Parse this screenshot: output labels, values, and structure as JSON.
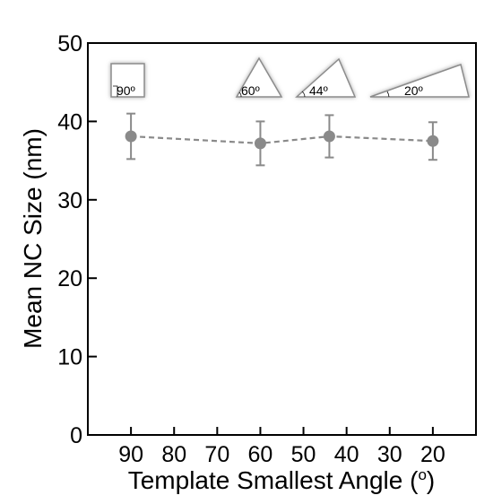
{
  "chart_data": {
    "type": "line",
    "xlabel_text": "Template Smallest Angle (",
    "xlabel_sup": "o",
    "xlabel_close": ")",
    "ylabel": "Mean NC Size (nm)",
    "xlim": [
      100,
      10
    ],
    "ylim": [
      0,
      50
    ],
    "x_reversed": true,
    "x_ticks": [
      90,
      80,
      70,
      60,
      50,
      40,
      30,
      20
    ],
    "y_ticks": [
      0,
      10,
      20,
      30,
      40,
      50
    ],
    "grid": false,
    "series": [
      {
        "x": [
          90,
          60,
          44,
          20
        ],
        "y": [
          38.1,
          37.2,
          38.1,
          37.5
        ],
        "err": [
          2.9,
          2.8,
          2.7,
          2.4
        ],
        "color": "#8a8a8a",
        "line_style": "dashed",
        "marker": "circle"
      }
    ],
    "template_shapes": [
      {
        "shape": "square",
        "label": "90º"
      },
      {
        "shape": "triangle",
        "label": "60º"
      },
      {
        "shape": "triangle",
        "label": "44º"
      },
      {
        "shape": "triangle",
        "label": "20º"
      }
    ],
    "colors": {
      "axis": "#000000",
      "data": "#8a8a8a",
      "shape_fill": "#ffffff",
      "shape_edge": "#909090"
    }
  }
}
